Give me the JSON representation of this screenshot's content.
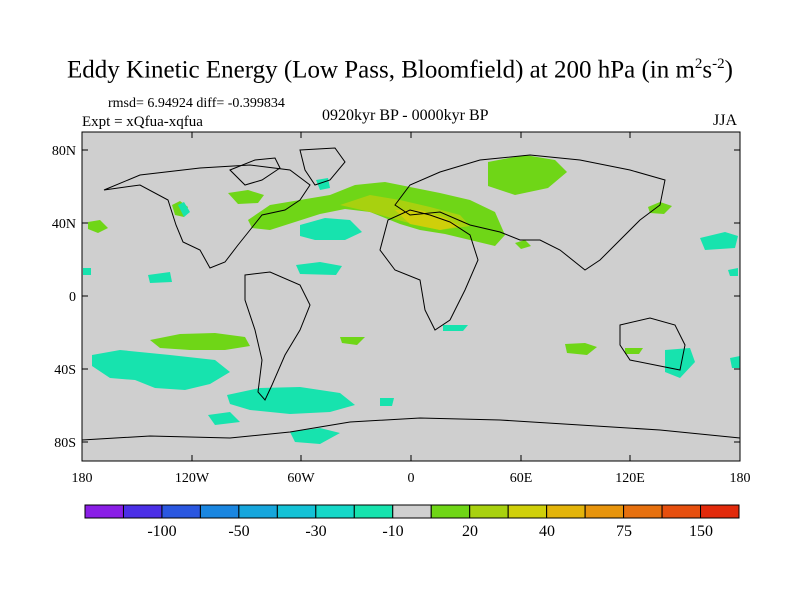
{
  "title": {
    "main": "Eddy Kinetic Energy (Low Pass, Bloomfield) at 200 hPa (in m",
    "sup1": "2",
    "mid": "s",
    "sup2": "-2",
    "end": ")"
  },
  "stats": {
    "rmsd_line": "rmsd= 6.94924 diff= -0.399834"
  },
  "experiment": "Expt = xQfua-xqfua",
  "period": "0920kyr BP - 0000kyr BP",
  "season": "JJA",
  "axes": {
    "y_ticks": [
      "80N",
      "40N",
      "0",
      "40S",
      "80S"
    ],
    "x_ticks": [
      "180",
      "120W",
      "60W",
      "0",
      "60E",
      "120E",
      "180"
    ]
  },
  "colorbar": {
    "colors": [
      "#8a1ee6",
      "#4b2fe6",
      "#2a57e0",
      "#1a86e0",
      "#17a6dc",
      "#14c2d6",
      "#16d8c8",
      "#17e3ae",
      "#cfcfcf",
      "#6fd617",
      "#a8d10f",
      "#cfcf0a",
      "#e3b40a",
      "#e7940c",
      "#e6700e",
      "#e64f0e",
      "#e22a0b"
    ],
    "labels": [
      "-100",
      "-50",
      "-30",
      "-10",
      "20",
      "40",
      "75",
      "150"
    ]
  },
  "map_colors": {
    "background": "#cfcfcf",
    "cyan": "#17e3ae",
    "green": "#6fd617",
    "yellow_green": "#a8d10f",
    "olive": "#cfcf0a"
  }
}
